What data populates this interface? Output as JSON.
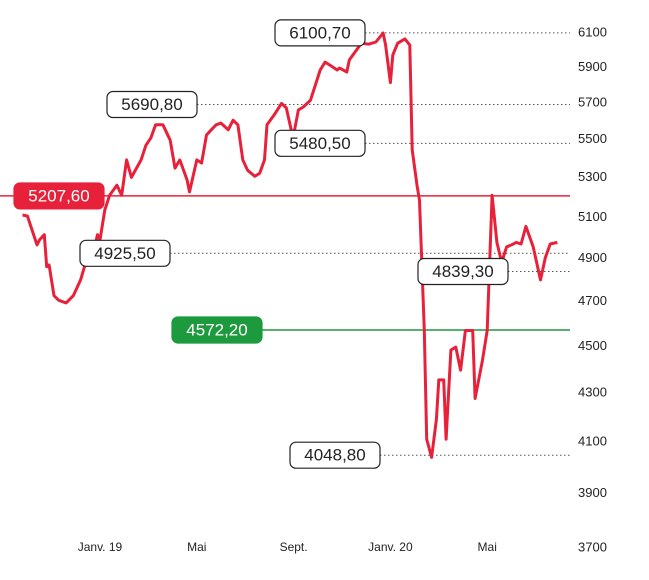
{
  "chart_data": {
    "type": "line",
    "log_scale": true,
    "x": [
      -3.2,
      -3.0,
      -2.6,
      -2.5,
      -2.3,
      -2.2,
      -2.1,
      -1.9,
      -1.7,
      -1.4,
      -1.1,
      -0.8,
      -0.5,
      -0.2,
      -0.1,
      0,
      0.2,
      0.4,
      0.7,
      0.9,
      1.1,
      1.3,
      1.7,
      1.9,
      2.1,
      2.3,
      2.6,
      2.7,
      2.9,
      3.1,
      3.3,
      3.6,
      3.7,
      4.0,
      4.2,
      4.4,
      4.6,
      4.8,
      5.0,
      5.3,
      5.5,
      5.7,
      5.9,
      6.1,
      6.4,
      6.6,
      6.8,
      6.9,
      7.2,
      7.5,
      7.7,
      7.9,
      8.0,
      8.2,
      8.4,
      8.7,
      8.9,
      9.1,
      9.3,
      9.5,
      9.8,
      9.9,
      10.2,
      10.3,
      10.6,
      10.8,
      11.1,
      11.4,
      11.7,
      11.8,
      12.0,
      12.1,
      12.3,
      12.6,
      12.8,
      12.9,
      13.1,
      13.2,
      13.4,
      13.5,
      13.7,
      13.9,
      14.0,
      14.2,
      14.3,
      14.5,
      14.7,
      14.9,
      15.1,
      15.4,
      15.5,
      15.8,
      16.0,
      16.2,
      16.4,
      16.6,
      16.8,
      17.0,
      17.2,
      17.4,
      17.6,
      17.9,
      18.2,
      18.4,
      18.6,
      18.9
    ],
    "series": [
      {
        "color": "#e8213a",
        "values": [
          5112,
          5107,
          4966,
          4990,
          5015,
          4862,
          4870,
          4727,
          4706,
          4694,
          4727,
          4800,
          4917,
          4966,
          5015,
          4990,
          5137,
          5211,
          5262,
          5211,
          5393,
          5302,
          5393,
          5470,
          5509,
          5580,
          5580,
          5553,
          5497,
          5350,
          5393,
          5289,
          5228,
          5393,
          5377,
          5525,
          5553,
          5580,
          5589,
          5553,
          5605,
          5580,
          5393,
          5339,
          5308,
          5324,
          5393,
          5580,
          5634,
          5697,
          5672,
          5553,
          5525,
          5661,
          5677,
          5715,
          5800,
          5885,
          5930,
          5913,
          5885,
          5896,
          5873,
          5942,
          6000,
          6040,
          6034,
          6047,
          6100,
          6029,
          5813,
          5971,
          6040,
          6065,
          6029,
          5446,
          5262,
          5186,
          4570,
          4112,
          4040,
          4192,
          4356,
          4356,
          4112,
          4484,
          4497,
          4397,
          4570,
          4570,
          4278,
          4438,
          4570,
          5211,
          4978,
          4882,
          4956,
          4966,
          4978,
          4970,
          5056,
          4956,
          4800,
          4904,
          4970,
          4978
        ]
      }
    ],
    "xlim": [
      -4.13,
      19.42
    ],
    "xticks": [
      {
        "value": 0,
        "label": "Janv. 19"
      },
      {
        "value": 4,
        "label": "Mai"
      },
      {
        "value": 8,
        "label": "Sept."
      },
      {
        "value": 12,
        "label": "Janv. 20"
      },
      {
        "value": 16,
        "label": "Mai"
      }
    ],
    "ylim": [
      3700,
      6100
    ],
    "yticks": [
      6100,
      5900,
      5700,
      5500,
      5300,
      5100,
      4900,
      4700,
      4500,
      4300,
      4100,
      3900,
      3700
    ],
    "annotations": [
      {
        "value": 6100.7,
        "label": "6100,70"
      },
      {
        "value": 5690.8,
        "label": "5690,80"
      },
      {
        "value": 5480.5,
        "label": "5480,50"
      },
      {
        "value": 5207.6,
        "label": "5207,60",
        "color": "#e8213a"
      },
      {
        "value": 4925.5,
        "label": "4925,50"
      },
      {
        "value": 4572.2,
        "label": "4572,20",
        "color": "#1e9a3e"
      },
      {
        "value": 4839.3,
        "label": "4839,30"
      },
      {
        "value": 4048.8,
        "label": "4048,80"
      }
    ]
  }
}
